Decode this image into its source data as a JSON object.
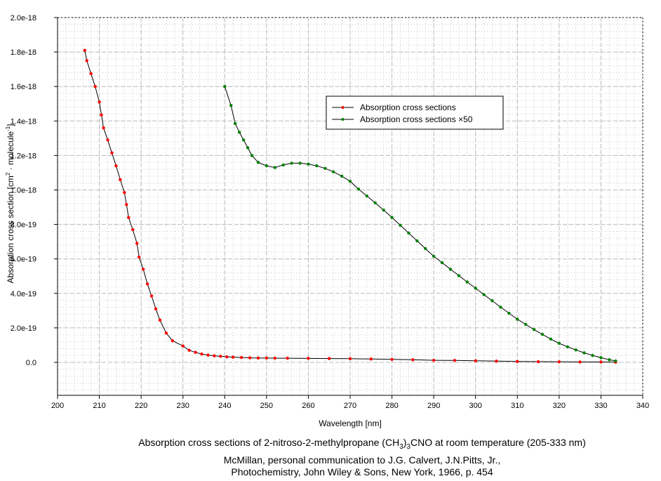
{
  "chart_data": {
    "type": "line",
    "xlabel": "Wavelength [nm]",
    "ylabel": {
      "prefix": "Absorption cross section [cm",
      "sup1": "2",
      "mid": " · molecule",
      "sup2": "-1",
      "suffix": "]"
    },
    "xlim": [
      200,
      340
    ],
    "ylim": [
      -1.9e-19,
      2e-18
    ],
    "xticks": [
      200,
      210,
      220,
      230,
      240,
      250,
      260,
      270,
      280,
      290,
      300,
      310,
      320,
      330,
      340
    ],
    "yticks": [
      0,
      2e-19,
      4e-19,
      6e-19,
      8e-19,
      1e-18,
      1.2e-18,
      1.4e-18,
      1.6e-18,
      1.8e-18,
      2e-18
    ],
    "ytick_labels": [
      "0.0",
      "2.0e-19",
      "4.0e-19",
      "6.0e-19",
      "8.0e-19",
      "1.0e-18",
      "1.2e-18",
      "1.4e-18",
      "1.6e-18",
      "1.8e-18",
      "2.0e-18"
    ],
    "grid": true,
    "legend_position": "upper-center-right",
    "series": [
      {
        "name": "Absorption cross sections",
        "marker_color": "#ff0000",
        "line_color": "#000000",
        "x": [
          206.5,
          207,
          208,
          209,
          210,
          210.5,
          211,
          212,
          213,
          214,
          215,
          216,
          216.5,
          217,
          218,
          219,
          219.5,
          220.5,
          221.5,
          222.5,
          223.5,
          224.5,
          226,
          227.5,
          230,
          231.5,
          233,
          234.5,
          236,
          237.5,
          239,
          240.5,
          242,
          244,
          246,
          248,
          250,
          252,
          255,
          260,
          265,
          270,
          275,
          280,
          285,
          290,
          295,
          300,
          305,
          310,
          315,
          320,
          325,
          330,
          333.5
        ],
        "y": [
          1.81e-18,
          1.75e-18,
          1.675e-18,
          1.6e-18,
          1.51e-18,
          1.435e-18,
          1.36e-18,
          1.29e-18,
          1.215e-18,
          1.14e-18,
          1.06e-18,
          9.85e-19,
          9.15e-19,
          8.4e-19,
          7.7e-19,
          6.9e-19,
          6.1e-19,
          5.4e-19,
          4.55e-19,
          3.85e-19,
          3.1e-19,
          2.45e-19,
          1.7e-19,
          1.25e-19,
          9.5e-20,
          7e-20,
          5.8e-20,
          4.8e-20,
          4.2e-20,
          3.8e-20,
          3.5e-20,
          3.2e-20,
          3e-20,
          2.8e-20,
          2.6e-20,
          2.5e-20,
          2.5e-20,
          2.4e-20,
          2.4e-20,
          2.3e-20,
          2.2e-20,
          2.1e-20,
          1.9e-20,
          1.7e-20,
          1.5e-20,
          1.2e-20,
          1.1e-20,
          9e-21,
          7e-21,
          5e-21,
          4e-21,
          3e-21,
          2e-21,
          2e-21,
          1e-21
        ]
      },
      {
        "name": "Absorption cross sections ×50",
        "marker_color": "#008000",
        "line_color": "#000000",
        "x": [
          240,
          241.5,
          242.5,
          243.5,
          244.5,
          245.5,
          246.5,
          248,
          250,
          252,
          254,
          256,
          258,
          260,
          262,
          264,
          266,
          268,
          270,
          272,
          274,
          276,
          278,
          280,
          282,
          284,
          286,
          288,
          290,
          292,
          294,
          296,
          298,
          300,
          302,
          304,
          306,
          308,
          310,
          312,
          314,
          316,
          318,
          320,
          322,
          324,
          326,
          328,
          330,
          332,
          333.5
        ],
        "y": [
          1.6e-18,
          1.49e-18,
          1.385e-18,
          1.335e-18,
          1.29e-18,
          1.245e-18,
          1.2e-18,
          1.16e-18,
          1.14e-18,
          1.13e-18,
          1.145e-18,
          1.155e-18,
          1.155e-18,
          1.15e-18,
          1.14e-18,
          1.125e-18,
          1.105e-18,
          1.08e-18,
          1.05e-18,
          1.005e-18,
          9.65e-19,
          9.25e-19,
          8.83e-19,
          8.4e-19,
          7.95e-19,
          7.5e-19,
          7.05e-19,
          6.6e-19,
          6.15e-19,
          5.78e-19,
          5.4e-19,
          5.03e-19,
          4.66e-19,
          4.3e-19,
          3.93e-19,
          3.57e-19,
          3.2e-19,
          2.85e-19,
          2.5e-19,
          2.2e-19,
          1.9e-19,
          1.62e-19,
          1.35e-19,
          1.1e-19,
          9e-20,
          7.2e-20,
          5.5e-20,
          4e-20,
          2.7e-20,
          1.5e-20,
          8e-21
        ]
      }
    ]
  },
  "caption": {
    "line1_prefix": "Absorption cross sections of 2-nitroso-2-methylpropane (CH",
    "line1_sub1": "3",
    "line1_mid": ")",
    "line1_sub2": "3",
    "line1_suffix": "CNO at room temperature (205-333 nm)",
    "line2": "McMillan, personal communication to J.G. Calvert, J.N.Pitts, Jr.,",
    "line3": "Photochemistry, John Wiley & Sons, New York, 1966, p. 454"
  }
}
